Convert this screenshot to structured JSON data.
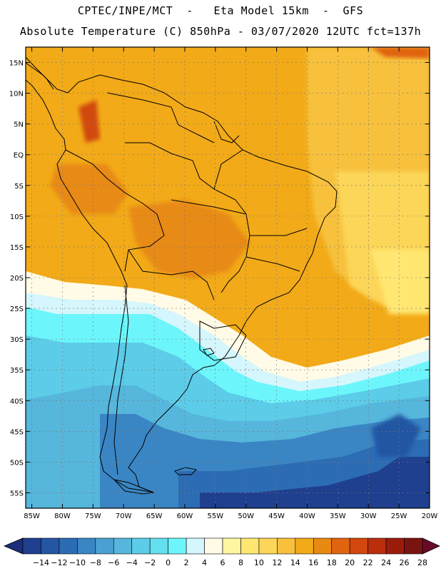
{
  "title": {
    "line1": "CPTEC/INPE/MCT  -   Eta Model 15km  -  GFS",
    "line2": "Absolute Temperature (C) 850hPa - 03/07/2020 12UTC fct=137h"
  },
  "axes": {
    "lat_labels": [
      "15N",
      "10N",
      "5N",
      "EQ",
      "5S",
      "10S",
      "15S",
      "20S",
      "25S",
      "30S",
      "35S",
      "40S",
      "45S",
      "50S",
      "55S"
    ],
    "lon_labels": [
      "85W",
      "80W",
      "75W",
      "70W",
      "65W",
      "60W",
      "55W",
      "50W",
      "45W",
      "40W",
      "35W",
      "30W",
      "25W",
      "20W"
    ],
    "lat_range": [
      17.5,
      -57.5
    ],
    "lon_range": [
      -86,
      -20
    ]
  },
  "colorbar": {
    "labels": [
      "-14",
      "-12",
      "-10",
      "-8",
      "-6",
      "-4",
      "-2",
      "0",
      "2",
      "4",
      "6",
      "8",
      "10",
      "12",
      "14",
      "16",
      "18",
      "20",
      "22",
      "24",
      "26",
      "28"
    ],
    "colors": [
      "#1f3f8f",
      "#2456a3",
      "#2c6cb4",
      "#3a86c4",
      "#4aa0d2",
      "#56b6dc",
      "#5ccce8",
      "#62e0f0",
      "#6cf6fc",
      "#d4f6fc",
      "#fffbe6",
      "#fff6a2",
      "#ffe772",
      "#fcd658",
      "#f7c13c",
      "#f2aa18",
      "#e88a12",
      "#e06410",
      "#d2480e",
      "#ba2e0c",
      "#9c1c0c",
      "#7a1410"
    ],
    "under_color": "#1a2e7a",
    "over_color": "#6a0a28"
  },
  "colors": {
    "warm_orange": "#f2aa18",
    "hot_orange": "#e88a12",
    "cold_blue": "#2c6cb4",
    "cyan": "#62e0f0"
  }
}
